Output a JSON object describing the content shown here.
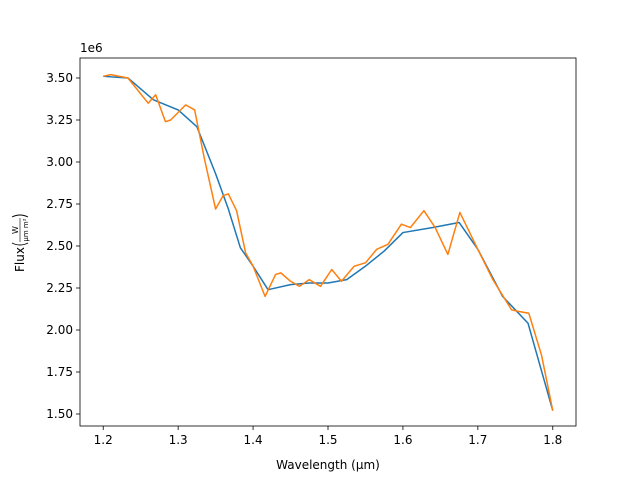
{
  "chart_data": {
    "type": "line",
    "x_label": "Wavelength (µm)",
    "y_label": "Flux",
    "y_label_unit_num": "W",
    "y_label_unit_den": "µm m²",
    "y_offset_text": "1e6",
    "xlim": [
      1.169,
      1.831
    ],
    "ylim": [
      1.4286,
      3.619
    ],
    "xticks": [
      {
        "value": 1.2,
        "label": "1.2"
      },
      {
        "value": 1.3,
        "label": "1.3"
      },
      {
        "value": 1.4,
        "label": "1.4"
      },
      {
        "value": 1.5,
        "label": "1.5"
      },
      {
        "value": 1.6,
        "label": "1.6"
      },
      {
        "value": 1.7,
        "label": "1.7"
      },
      {
        "value": 1.8,
        "label": "1.8"
      }
    ],
    "yticks": [
      {
        "value": 1.5,
        "label": "1.50"
      },
      {
        "value": 1.75,
        "label": "1.75"
      },
      {
        "value": 2,
        "label": "2.00"
      },
      {
        "value": 2.25,
        "label": "2.25"
      },
      {
        "value": 2.5,
        "label": "2.50"
      },
      {
        "value": 2.75,
        "label": "2.75"
      },
      {
        "value": 3,
        "label": "3.00"
      },
      {
        "value": 3.25,
        "label": "3.25"
      },
      {
        "value": 3.5,
        "label": "3.50"
      }
    ],
    "grid": false,
    "series": [
      {
        "color": "#1f77b4",
        "x": [
          1.2,
          1.233,
          1.267,
          1.3,
          1.325,
          1.35,
          1.367,
          1.383,
          1.4,
          1.42,
          1.45,
          1.475,
          1.5,
          1.525,
          1.55,
          1.575,
          1.6,
          1.64,
          1.675,
          1.7,
          1.733,
          1.767,
          1.8
        ],
        "values": [
          3.51,
          3.5,
          3.37,
          3.31,
          3.21,
          2.93,
          2.72,
          2.49,
          2.38,
          2.24,
          2.27,
          2.28,
          2.28,
          2.3,
          2.38,
          2.47,
          2.58,
          2.61,
          2.64,
          2.48,
          2.2,
          2.04,
          1.52
        ]
      },
      {
        "color": "#ff7f0e",
        "x": [
          1.2,
          1.21,
          1.233,
          1.26,
          1.27,
          1.283,
          1.29,
          1.31,
          1.322,
          1.335,
          1.35,
          1.36,
          1.367,
          1.378,
          1.39,
          1.4,
          1.416,
          1.43,
          1.437,
          1.45,
          1.462,
          1.475,
          1.49,
          1.505,
          1.518,
          1.535,
          1.55,
          1.565,
          1.58,
          1.598,
          1.61,
          1.628,
          1.643,
          1.66,
          1.676,
          1.7,
          1.72,
          1.745,
          1.755,
          1.768,
          1.785,
          1.8
        ],
        "values": [
          3.51,
          3.52,
          3.5,
          3.35,
          3.4,
          3.24,
          3.25,
          3.34,
          3.31,
          3.02,
          2.72,
          2.8,
          2.81,
          2.71,
          2.46,
          2.38,
          2.2,
          2.33,
          2.34,
          2.29,
          2.26,
          2.3,
          2.26,
          2.36,
          2.29,
          2.38,
          2.4,
          2.48,
          2.51,
          2.63,
          2.61,
          2.71,
          2.61,
          2.45,
          2.7,
          2.48,
          2.3,
          2.12,
          2.11,
          2.1,
          1.85,
          1.52
        ]
      }
    ]
  }
}
